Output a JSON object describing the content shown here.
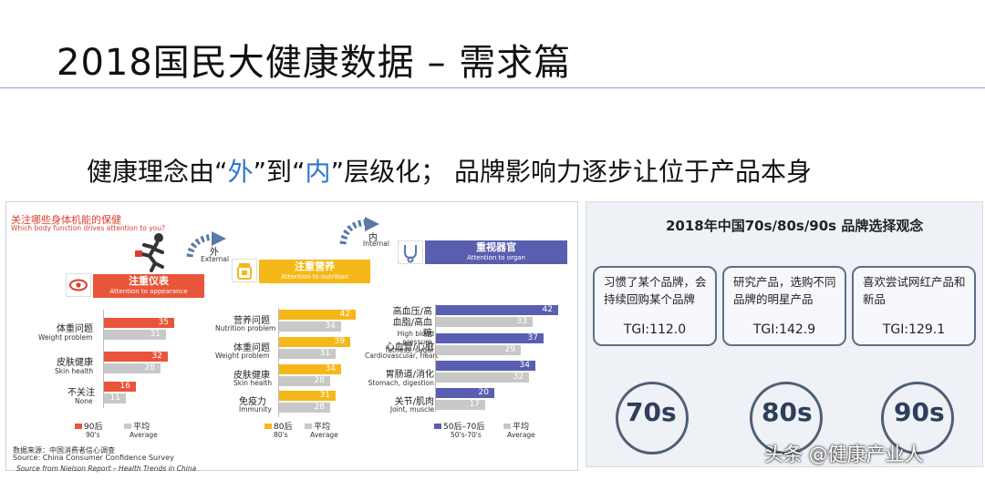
{
  "slide": {
    "title": "2018国民大健康数据 – 需求篇",
    "subtitle": {
      "p1": "健康理念由“",
      "h1": "外",
      "p2": "”到“",
      "h2": "内",
      "p3": "”层级化；  品牌影响力逐步让位于产品本身"
    },
    "source_note": "Source from Nielson Report – Health Trends in China",
    "watermark": "头条 @健康产业人"
  },
  "left_panel": {
    "heading_cn": "关注哪些身体机能的保健",
    "heading_en": "Which body function drives attention to you?",
    "arrow_external_cn": "外",
    "arrow_external_en": "External",
    "arrow_internal_cn": "内",
    "arrow_internal_en": "Internal",
    "data_source_cn": "数据来源：中国消费者信心调查",
    "data_source_en": "Source: China Consumer Confidence Survey"
  },
  "chart_data": [
    {
      "type": "bar",
      "title_cn": "注重仪表",
      "title_en": "Attention to appearance",
      "colors": {
        "series": "#e8553a",
        "average": "#c8c8c8"
      },
      "categories": [
        {
          "cn": "体重问题",
          "en": "Weight problem"
        },
        {
          "cn": "皮肤健康",
          "en": "Skin health"
        },
        {
          "cn": "不关注",
          "en": "None"
        }
      ],
      "series": [
        {
          "name_cn": "90后",
          "name_en": "90's",
          "values": [
            35,
            32,
            16
          ]
        },
        {
          "name_cn": "平均",
          "name_en": "Average",
          "values": [
            31,
            28,
            11
          ]
        }
      ]
    },
    {
      "type": "bar",
      "title_cn": "注重营养",
      "title_en": "Attention to nutrition",
      "colors": {
        "series": "#f5b818",
        "average": "#c8c8c8"
      },
      "categories": [
        {
          "cn": "营养问题",
          "en": "Nutrition problem"
        },
        {
          "cn": "体重问题",
          "en": "Weight problem"
        },
        {
          "cn": "皮肤健康",
          "en": "Skin health"
        },
        {
          "cn": "免疫力",
          "en": "Immunity"
        }
      ],
      "series": [
        {
          "name_cn": "80后",
          "name_en": "80's",
          "values": [
            42,
            39,
            34,
            31
          ]
        },
        {
          "name_cn": "平均",
          "name_en": "Average",
          "values": [
            34,
            31,
            28,
            28
          ]
        }
      ]
    },
    {
      "type": "bar",
      "title_cn": "重视器官",
      "title_en": "Attention to organ",
      "colors": {
        "series": "#5a5eb0",
        "average": "#c8c8c8"
      },
      "categories": [
        {
          "cn": "高血压/高血脂/高血糖",
          "en": "High blood pressure, fatness, sugar"
        },
        {
          "cn": "心血管/心脏",
          "en": "Cardiovascular, heart"
        },
        {
          "cn": "胃肠道/消化",
          "en": "Stomach, digestion"
        },
        {
          "cn": "关节/肌肉",
          "en": "Joint, muscle"
        }
      ],
      "series": [
        {
          "name_cn": "50后–70后",
          "name_en": "50's-70's",
          "values": [
            42,
            37,
            34,
            20
          ]
        },
        {
          "name_cn": "平均",
          "name_en": "Average",
          "values": [
            33,
            29,
            32,
            17
          ]
        }
      ]
    }
  ],
  "right_panel": {
    "title": "2018年中国70s/80s/90s 品牌选择观念",
    "cards": [
      {
        "desc": "习惯了某个品牌，会持续回购某个品牌",
        "tgi": "TGI:112.0",
        "generation": "70s"
      },
      {
        "desc": "研究产品，选购不同品牌的明星产品",
        "tgi": "TGI:142.9",
        "generation": "80s"
      },
      {
        "desc": "喜欢尝试网红产品和新品",
        "tgi": "TGI:129.1",
        "generation": "90s"
      }
    ]
  }
}
